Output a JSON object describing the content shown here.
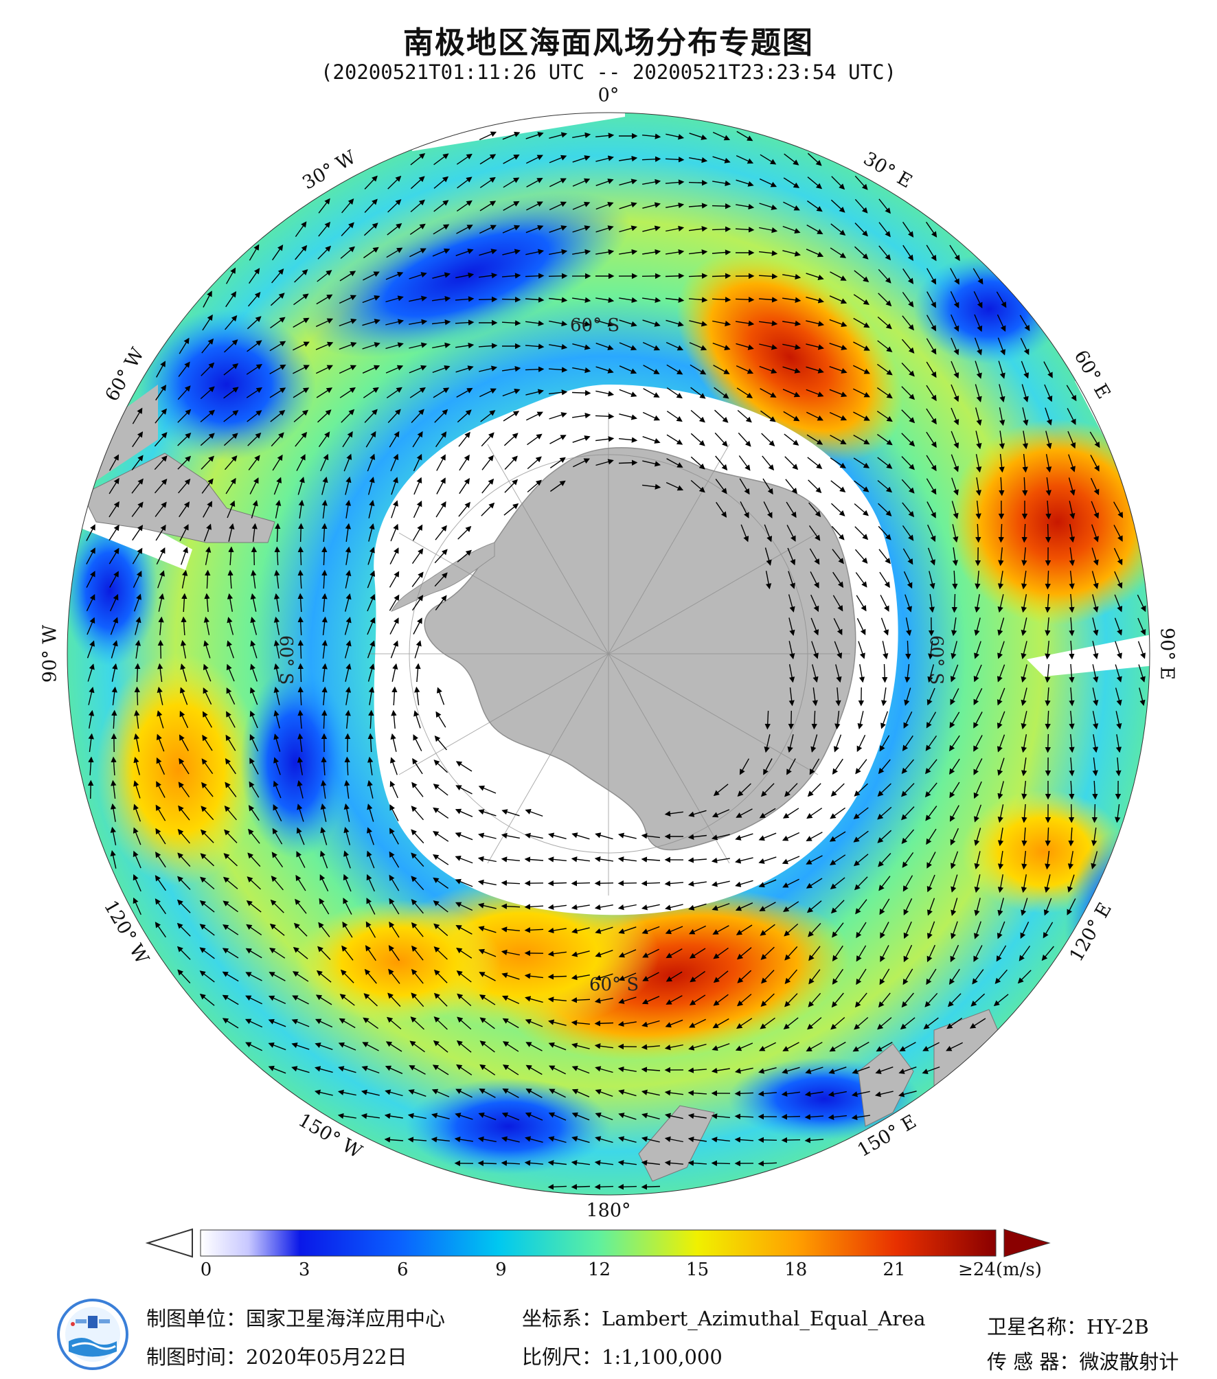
{
  "title": "南极地区海面风场分布专题图",
  "subtitle": "(20200521T01:11:26 UTC -- 20200521T23:23:54 UTC)",
  "map": {
    "projection": "south-polar",
    "center": "South Pole",
    "meridian_labels": [
      {
        "lon": 0,
        "text": "0°"
      },
      {
        "lon": 30,
        "text": "30° E"
      },
      {
        "lon": 60,
        "text": "60° E"
      },
      {
        "lon": 90,
        "text": "90° E"
      },
      {
        "lon": 120,
        "text": "120° E"
      },
      {
        "lon": 150,
        "text": "150° E"
      },
      {
        "lon": 180,
        "text": "180°"
      },
      {
        "lon": -150,
        "text": "150° W"
      },
      {
        "lon": -120,
        "text": "120° W"
      },
      {
        "lon": -90,
        "text": "90° W"
      },
      {
        "lon": -60,
        "text": "60° W"
      },
      {
        "lon": -30,
        "text": "30° W"
      }
    ],
    "latitude_labels": [
      {
        "lat": -60,
        "text": "60° S"
      }
    ],
    "colors": {
      "land": "#b9b9b9",
      "ice": "#ffffff",
      "arrow": "#000000",
      "graticule": "#8a8a8a"
    },
    "wind_field_pattern": "clockwise circumpolar flow; strong winds (orange/red) near 30°E–60°E and south of Australia/New Zealand near 160°E–180°; weak winds (blue) in the Atlantic sector and near 90°W"
  },
  "colorbar": {
    "unit": "(m/s)",
    "min": 0,
    "max": 24,
    "ticks": [
      "0",
      "3",
      "6",
      "9",
      "12",
      "15",
      "18",
      "21",
      "≥24(m/s)"
    ],
    "colors": [
      "#ffffff",
      "#0a18e8",
      "#0a60ff",
      "#00c8f0",
      "#5ef0a0",
      "#f0f000",
      "#ffa000",
      "#e83000",
      "#8a0000"
    ]
  },
  "footer": {
    "org_label": "制图单位：国家卫星海洋应用中心",
    "date_label": "制图时间：2020年05月22日",
    "coord_label": "坐标系：Lambert_Azimuthal_Equal_Area",
    "scale_label": "比例尺：1:1,100,000",
    "satellite_label": "卫星名称：HY-2B",
    "sensor_label": "传 感 器：微波散射计"
  }
}
